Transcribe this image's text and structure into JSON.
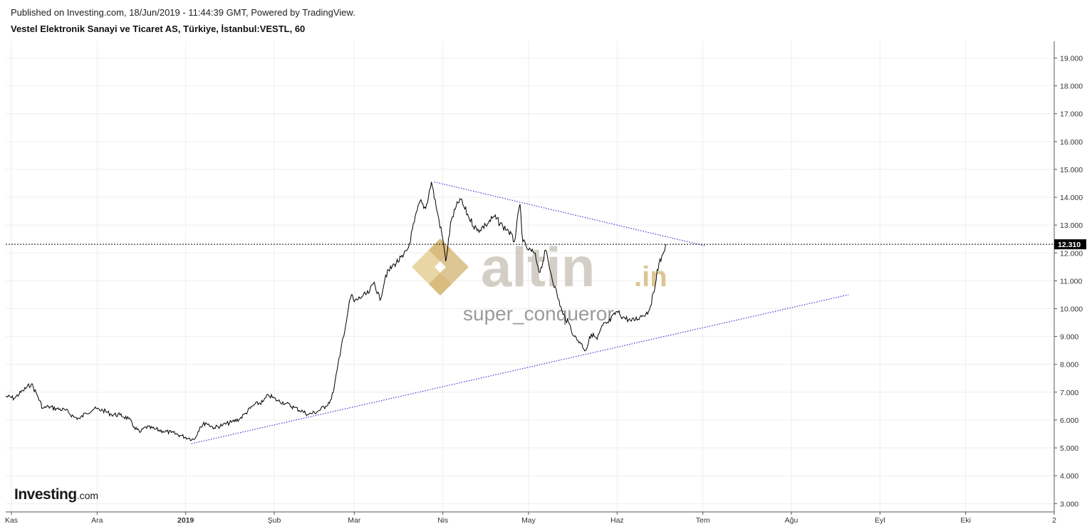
{
  "header": {
    "published": "Published on Investing.com, 18/Jun/2019 - 11:44:39 GMT, Powered by TradingView.",
    "title": "Vestel Elektronik Sanayi ve Ticaret AS, Türkiye, İstanbul:VESTL, 60"
  },
  "watermark": {
    "brand_main": "altin",
    "brand_suffix": ".in",
    "user": "super_conqueror"
  },
  "logo": {
    "brand": "Investing",
    "suffix": ".com"
  },
  "colors": {
    "price_line": "#000000",
    "trendline": "#3a3ad8",
    "current_price_bg": "#000000",
    "grid": "#eeeeee",
    "watermark_gold": "#d9c089",
    "watermark_gray": "#cfcac0"
  },
  "chart_data": {
    "type": "line",
    "symbol": "VESTL",
    "interval": "60",
    "y_axis_side": "right",
    "ylim": [
      2.7,
      19.6
    ],
    "yticks": [
      3,
      4,
      5,
      6,
      7,
      8,
      9,
      10,
      11,
      12,
      13,
      14,
      15,
      16,
      17,
      18,
      19
    ],
    "ytick_labels": [
      "3.000",
      "4.000",
      "5.000",
      "6.000",
      "7.000",
      "8.000",
      "9.000",
      "10.000",
      "11.000",
      "12.000",
      "13.000",
      "14.000",
      "15.000",
      "16.000",
      "17.000",
      "18.000",
      "19.000"
    ],
    "x_tick_labels": [
      {
        "date": "2018-11-01",
        "label": "Kas"
      },
      {
        "date": "2018-12-01",
        "label": "Ara"
      },
      {
        "date": "2019-01-01",
        "label": "2019",
        "bold": true
      },
      {
        "date": "2019-02-01",
        "label": "Şub"
      },
      {
        "date": "2019-03-01",
        "label": "Mar"
      },
      {
        "date": "2019-04-01",
        "label": "Nis"
      },
      {
        "date": "2019-05-01",
        "label": "May"
      },
      {
        "date": "2019-06-01",
        "label": "Haz"
      },
      {
        "date": "2019-07-01",
        "label": "Tem"
      },
      {
        "date": "2019-08-01",
        "label": "Ağu"
      },
      {
        "date": "2019-09-01",
        "label": "Eyl"
      },
      {
        "date": "2019-10-01",
        "label": "Eki"
      },
      {
        "date": "2019-11-01",
        "label": "2"
      }
    ],
    "xlim": [
      "2018-10-30",
      "2019-11-01"
    ],
    "current_price": 12.31,
    "current_price_label": "12.310",
    "series": [
      {
        "values": [
          [
            "2018-10-30",
            6.85
          ],
          [
            "2018-11-02",
            6.78
          ],
          [
            "2018-11-05",
            7.05
          ],
          [
            "2018-11-08",
            7.3
          ],
          [
            "2018-11-10",
            6.9
          ],
          [
            "2018-11-12",
            6.42
          ],
          [
            "2018-11-14",
            6.48
          ],
          [
            "2018-11-17",
            6.4
          ],
          [
            "2018-11-20",
            6.35
          ],
          [
            "2018-11-23",
            6.1
          ],
          [
            "2018-11-25",
            6.05
          ],
          [
            "2018-11-27",
            6.25
          ],
          [
            "2018-11-30",
            6.4
          ],
          [
            "2018-12-03",
            6.35
          ],
          [
            "2018-12-06",
            6.2
          ],
          [
            "2018-12-09",
            6.18
          ],
          [
            "2018-12-12",
            6.05
          ],
          [
            "2018-12-14",
            5.75
          ],
          [
            "2018-12-16",
            5.55
          ],
          [
            "2018-12-18",
            5.75
          ],
          [
            "2018-12-21",
            5.68
          ],
          [
            "2018-12-24",
            5.6
          ],
          [
            "2018-12-27",
            5.55
          ],
          [
            "2018-12-30",
            5.45
          ],
          [
            "2019-01-02",
            5.35
          ],
          [
            "2019-01-04",
            5.3
          ],
          [
            "2019-01-06",
            5.75
          ],
          [
            "2019-01-08",
            5.9
          ],
          [
            "2019-01-11",
            5.72
          ],
          [
            "2019-01-14",
            5.82
          ],
          [
            "2019-01-17",
            5.92
          ],
          [
            "2019-01-20",
            6.05
          ],
          [
            "2019-01-22",
            6.25
          ],
          [
            "2019-01-25",
            6.55
          ],
          [
            "2019-01-28",
            6.65
          ],
          [
            "2019-01-30",
            6.9
          ],
          [
            "2019-02-02",
            6.7
          ],
          [
            "2019-02-05",
            6.6
          ],
          [
            "2019-02-08",
            6.45
          ],
          [
            "2019-02-11",
            6.3
          ],
          [
            "2019-02-13",
            6.2
          ],
          [
            "2019-02-16",
            6.3
          ],
          [
            "2019-02-19",
            6.5
          ],
          [
            "2019-02-21",
            6.75
          ],
          [
            "2019-02-22",
            7.2
          ],
          [
            "2019-02-23",
            7.8
          ],
          [
            "2019-02-24",
            8.3
          ],
          [
            "2019-02-25",
            8.95
          ],
          [
            "2019-02-26",
            9.4
          ],
          [
            "2019-02-27",
            10.05
          ],
          [
            "2019-02-28",
            10.5
          ],
          [
            "2019-03-01",
            10.25
          ],
          [
            "2019-03-04",
            10.45
          ],
          [
            "2019-03-06",
            10.55
          ],
          [
            "2019-03-08",
            10.95
          ],
          [
            "2019-03-10",
            10.3
          ],
          [
            "2019-03-12",
            11.2
          ],
          [
            "2019-03-15",
            11.6
          ],
          [
            "2019-03-18",
            11.85
          ],
          [
            "2019-03-20",
            12.2
          ],
          [
            "2019-03-22",
            13.1
          ],
          [
            "2019-03-24",
            13.85
          ],
          [
            "2019-03-26",
            13.6
          ],
          [
            "2019-03-28",
            14.55
          ],
          [
            "2019-03-30",
            13.5
          ],
          [
            "2019-04-01",
            12.5
          ],
          [
            "2019-04-02",
            11.7
          ],
          [
            "2019-04-04",
            13.2
          ],
          [
            "2019-04-07",
            13.95
          ],
          [
            "2019-04-10",
            13.3
          ],
          [
            "2019-04-13",
            12.8
          ],
          [
            "2019-04-16",
            13.0
          ],
          [
            "2019-04-19",
            13.3
          ],
          [
            "2019-04-22",
            12.95
          ],
          [
            "2019-04-24",
            12.8
          ],
          [
            "2019-04-26",
            12.4
          ],
          [
            "2019-04-28",
            13.75
          ],
          [
            "2019-04-29",
            12.4
          ],
          [
            "2019-05-01",
            12.1
          ],
          [
            "2019-05-03",
            12.0
          ],
          [
            "2019-05-05",
            11.3
          ],
          [
            "2019-05-07",
            12.1
          ],
          [
            "2019-05-09",
            11.2
          ],
          [
            "2019-05-11",
            10.5
          ],
          [
            "2019-05-13",
            9.8
          ],
          [
            "2019-05-15",
            9.5
          ],
          [
            "2019-05-17",
            9.0
          ],
          [
            "2019-05-19",
            8.8
          ],
          [
            "2019-05-21",
            8.5
          ],
          [
            "2019-05-23",
            9.1
          ],
          [
            "2019-05-25",
            8.9
          ],
          [
            "2019-05-27",
            9.4
          ],
          [
            "2019-05-29",
            9.5
          ],
          [
            "2019-06-01",
            9.9
          ],
          [
            "2019-06-03",
            9.7
          ],
          [
            "2019-06-06",
            9.55
          ],
          [
            "2019-06-09",
            9.7
          ],
          [
            "2019-06-12",
            9.9
          ],
          [
            "2019-06-14",
            10.6
          ],
          [
            "2019-06-15",
            11.4
          ],
          [
            "2019-06-17",
            11.95
          ],
          [
            "2019-06-18",
            12.31
          ]
        ]
      }
    ],
    "trendlines": [
      {
        "name": "upper",
        "start": [
          "2019-03-29",
          14.55
        ],
        "end": [
          "2019-07-02",
          12.25
        ]
      },
      {
        "name": "lower",
        "start": [
          "2019-01-03",
          5.15
        ],
        "end": [
          "2019-08-21",
          10.5
        ]
      }
    ],
    "grid": true
  }
}
